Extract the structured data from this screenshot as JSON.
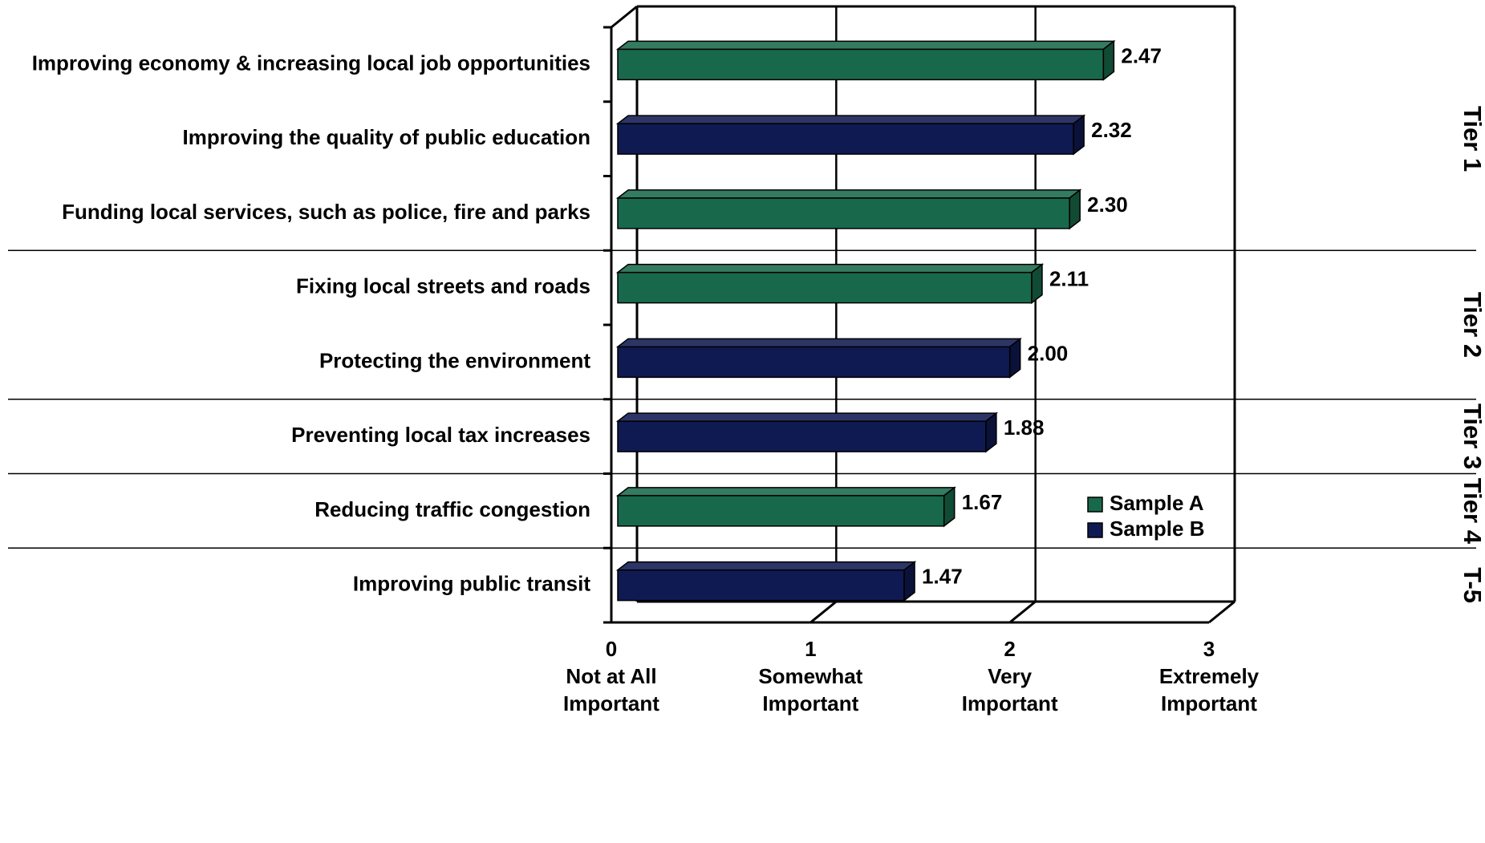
{
  "chart_data": {
    "type": "bar",
    "orientation": "horizontal",
    "categories": [
      "Improving economy & increasing local job opportunities",
      "Improving the quality of public education",
      "Funding local services, such as police, fire and parks",
      "Fixing local streets and roads",
      "Protecting the environment",
      "Preventing local tax increases",
      "Reducing traffic congestion",
      "Improving public transit"
    ],
    "values": [
      2.47,
      2.32,
      2.3,
      2.11,
      2.0,
      1.88,
      1.67,
      1.47
    ],
    "value_labels": [
      "2.47",
      "2.32",
      "2.30",
      "2.11",
      "2.00",
      "1.88",
      "1.67",
      "1.47"
    ],
    "bar_series": [
      "A",
      "B",
      "A",
      "A",
      "B",
      "B",
      "A",
      "B"
    ],
    "series": [
      {
        "id": "A",
        "name": "Sample A",
        "color": "#18694c"
      },
      {
        "id": "B",
        "name": "Sample B",
        "color": "#101a52"
      }
    ],
    "xlim": [
      0,
      3
    ],
    "x_ticks": [
      {
        "value": 0,
        "label": "0",
        "desc": [
          "Not at All",
          "Important"
        ]
      },
      {
        "value": 1,
        "label": "1",
        "desc": [
          "Somewhat",
          "Important"
        ]
      },
      {
        "value": 2,
        "label": "2",
        "desc": [
          "Very",
          "Important"
        ]
      },
      {
        "value": 3,
        "label": "3",
        "desc": [
          "Extremely",
          "Important"
        ]
      }
    ],
    "tiers": [
      {
        "label": "Tier 1",
        "start": 0,
        "end": 2
      },
      {
        "label": "Tier 2",
        "start": 3,
        "end": 4
      },
      {
        "label": "Tier 3",
        "start": 5,
        "end": 5
      },
      {
        "label": "Tier 4",
        "start": 6,
        "end": 6
      },
      {
        "label": "T-5",
        "start": 7,
        "end": 7
      }
    ],
    "legend_position": "bottom-right",
    "grid": true
  }
}
